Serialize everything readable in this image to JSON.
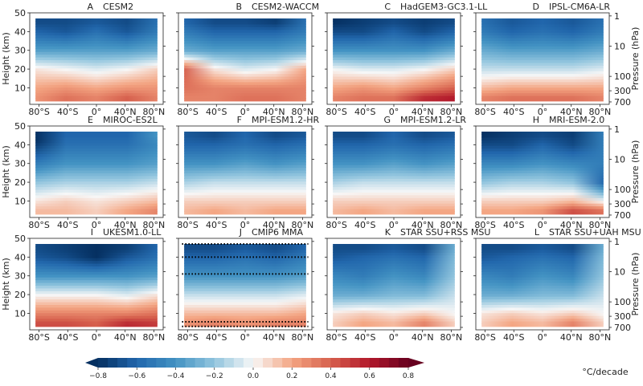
{
  "chart_data": {
    "type": "heatmap",
    "latitudes": [
      -80,
      -40,
      0,
      40,
      80
    ],
    "heights_km": [
      5,
      10,
      20,
      30,
      40,
      45
    ],
    "x_ticks": [
      "80°S",
      "40°S",
      "0°",
      "40°N",
      "80°N"
    ],
    "x_tick_values": [
      -80,
      -40,
      0,
      40,
      80
    ],
    "xlim": [
      -93,
      93
    ],
    "ylabel": "Height (km)",
    "y_ticks": [
      10,
      20,
      30,
      40,
      50
    ],
    "ylim": [
      1.2,
      50
    ],
    "ylabel_right": "Pressure (hPa)",
    "y_right_ticks": [
      1,
      10,
      100,
      300,
      700
    ],
    "colorbar": {
      "ticks": [
        "−0.8",
        "−0.6",
        "−0.4",
        "−0.2",
        "0.0",
        "0.2",
        "0.4",
        "0.6",
        "0.8"
      ],
      "tick_values": [
        -0.8,
        -0.6,
        -0.4,
        -0.2,
        0.0,
        0.2,
        0.4,
        0.6,
        0.8
      ],
      "range": [
        -0.8,
        0.8
      ],
      "label": "°C/decade",
      "colormap": [
        "#053061",
        "#2166ac",
        "#4393c3",
        "#92c5de",
        "#f7f7f7",
        "#f4a582",
        "#d6604d",
        "#b2182b",
        "#67001f"
      ]
    },
    "panels": [
      {
        "letter": "A",
        "name": "CESM2",
        "values": [
          [
            0.25,
            0.35,
            0.3,
            0.4,
            0.3
          ],
          [
            0.2,
            0.25,
            0.2,
            0.25,
            0.25
          ],
          [
            0.05,
            0,
            -0.05,
            0,
            0.1
          ],
          [
            -0.35,
            -0.35,
            -0.35,
            -0.35,
            -0.3
          ],
          [
            -0.6,
            -0.65,
            -0.55,
            -0.65,
            -0.5
          ],
          [
            -0.7,
            -0.7,
            -0.65,
            -0.7,
            -0.55
          ]
        ]
      },
      {
        "letter": "B",
        "name": "CESM2-WACCM",
        "values": [
          [
            0.3,
            0.3,
            0.35,
            0.35,
            0.3
          ],
          [
            0.35,
            0.3,
            0.3,
            0.3,
            0.3
          ],
          [
            0.4,
            0.05,
            -0.05,
            0,
            0.2
          ],
          [
            -0.3,
            -0.35,
            -0.35,
            -0.35,
            -0.3
          ],
          [
            -0.5,
            -0.6,
            -0.6,
            -0.6,
            -0.5
          ],
          [
            -0.6,
            -0.7,
            -0.7,
            -0.75,
            -0.55
          ]
        ]
      },
      {
        "letter": "C",
        "name": "HadGEM3-GC3.1-LL",
        "values": [
          [
            0.3,
            0.35,
            0.35,
            0.55,
            0.6
          ],
          [
            0.2,
            0.25,
            0.2,
            0.3,
            0.4
          ],
          [
            0,
            -0.05,
            -0.05,
            0,
            0.1
          ],
          [
            -0.4,
            -0.4,
            -0.4,
            -0.4,
            -0.3
          ],
          [
            -0.7,
            -0.7,
            -0.6,
            -0.7,
            -0.6
          ],
          [
            -0.8,
            -0.75,
            -0.7,
            -0.75,
            -0.7
          ]
        ]
      },
      {
        "letter": "D",
        "name": "IPSL-CM6A-LR",
        "values": [
          [
            0.3,
            0.35,
            0.35,
            0.35,
            0.3
          ],
          [
            0.15,
            0.2,
            0.2,
            0.2,
            0.2
          ],
          [
            -0.1,
            -0.1,
            -0.1,
            -0.1,
            -0.05
          ],
          [
            -0.3,
            -0.35,
            -0.35,
            -0.35,
            -0.3
          ],
          [
            -0.5,
            -0.6,
            -0.55,
            -0.6,
            -0.5
          ],
          [
            -0.55,
            -0.65,
            -0.6,
            -0.65,
            -0.55
          ]
        ]
      },
      {
        "letter": "E",
        "name": "MIROC-ES2L",
        "values": [
          [
            0.15,
            0.15,
            0.1,
            0.2,
            0.3
          ],
          [
            0.05,
            0.1,
            0.05,
            0.1,
            0.15
          ],
          [
            -0.2,
            -0.15,
            -0.15,
            -0.15,
            -0.1
          ],
          [
            -0.5,
            -0.4,
            -0.4,
            -0.4,
            -0.35
          ],
          [
            -0.75,
            -0.55,
            -0.55,
            -0.55,
            -0.45
          ],
          [
            -0.85,
            -0.6,
            -0.6,
            -0.6,
            -0.4
          ]
        ]
      },
      {
        "letter": "F",
        "name": "MPI-ESM1.2-HR",
        "values": [
          [
            0.15,
            0.2,
            0.15,
            0.2,
            0.2
          ],
          [
            0.1,
            0.1,
            0.1,
            0.1,
            0.1
          ],
          [
            -0.15,
            -0.1,
            -0.1,
            -0.1,
            -0.1
          ],
          [
            -0.4,
            -0.4,
            -0.35,
            -0.4,
            -0.35
          ],
          [
            -0.6,
            -0.6,
            -0.55,
            -0.6,
            -0.55
          ],
          [
            -0.65,
            -0.7,
            -0.6,
            -0.7,
            -0.65
          ]
        ]
      },
      {
        "letter": "G",
        "name": "MPI-ESM1.2-LR",
        "values": [
          [
            0.15,
            0.2,
            0.15,
            0.2,
            0.2
          ],
          [
            0.1,
            0.1,
            0.1,
            0.1,
            0.1
          ],
          [
            -0.15,
            -0.1,
            -0.1,
            -0.1,
            -0.1
          ],
          [
            -0.4,
            -0.4,
            -0.35,
            -0.4,
            -0.35
          ],
          [
            -0.6,
            -0.6,
            -0.55,
            -0.6,
            -0.55
          ],
          [
            -0.7,
            -0.7,
            -0.6,
            -0.7,
            -0.65
          ]
        ]
      },
      {
        "letter": "H",
        "name": "MRI-ESM-2.0",
        "values": [
          [
            0.2,
            0.2,
            0.25,
            0.45,
            0.35
          ],
          [
            0.1,
            0.1,
            0.1,
            0.15,
            0
          ],
          [
            -0.2,
            -0.15,
            -0.15,
            -0.2,
            -0.6
          ],
          [
            -0.45,
            -0.45,
            -0.4,
            -0.45,
            -0.5
          ],
          [
            -0.7,
            -0.7,
            -0.6,
            -0.7,
            -0.5
          ],
          [
            -0.8,
            -0.75,
            -0.7,
            -0.75,
            -0.5
          ]
        ]
      },
      {
        "letter": "I",
        "name": "UKESM1.0-LL",
        "values": [
          [
            0.45,
            0.45,
            0.4,
            0.55,
            0.5
          ],
          [
            0.3,
            0.3,
            0.3,
            0.3,
            0.35
          ],
          [
            0,
            0,
            0,
            -0.05,
            0.05
          ],
          [
            -0.4,
            -0.4,
            -0.4,
            -0.4,
            -0.35
          ],
          [
            -0.65,
            -0.7,
            -0.8,
            -0.65,
            -0.55
          ],
          [
            -0.7,
            -0.75,
            -0.85,
            -0.75,
            -0.6
          ]
        ]
      },
      {
        "letter": "J",
        "name": "CMIP6 MMA",
        "stippled_heights_km": [
          47,
          40,
          31,
          5.5,
          3
        ],
        "values": [
          [
            0.25,
            0.3,
            0.25,
            0.3,
            0.3
          ],
          [
            0.15,
            0.15,
            0.15,
            0.15,
            0.2
          ],
          [
            -0.1,
            -0.1,
            -0.1,
            -0.1,
            -0.05
          ],
          [
            -0.4,
            -0.4,
            -0.4,
            -0.4,
            -0.35
          ],
          [
            -0.6,
            -0.6,
            -0.55,
            -0.6,
            -0.5
          ],
          [
            -0.7,
            -0.7,
            -0.65,
            -0.7,
            -0.6
          ]
        ]
      },
      {
        "letter": "K",
        "name": "STAR SSU+RSS MSU",
        "values": [
          [
            0.1,
            0.2,
            0.15,
            0.3,
            0.1
          ],
          [
            0.05,
            0.1,
            0.05,
            0.1,
            0
          ],
          [
            -0.3,
            -0.3,
            -0.25,
            -0.25,
            -0.1
          ],
          [
            -0.45,
            -0.5,
            -0.4,
            -0.45,
            -0.2
          ],
          [
            -0.65,
            -0.6,
            -0.55,
            -0.6,
            -0.25
          ],
          [
            -0.7,
            -0.7,
            -0.65,
            -0.7,
            -0.3
          ]
        ]
      },
      {
        "letter": "L",
        "name": "STAR SSU+UAH MSU",
        "values": [
          [
            0.1,
            0.2,
            0.15,
            0.3,
            0.1
          ],
          [
            0.05,
            0.1,
            0.05,
            0.1,
            0
          ],
          [
            -0.3,
            -0.3,
            -0.25,
            -0.25,
            -0.1
          ],
          [
            -0.45,
            -0.5,
            -0.4,
            -0.45,
            -0.2
          ],
          [
            -0.65,
            -0.6,
            -0.55,
            -0.6,
            -0.25
          ],
          [
            -0.7,
            -0.7,
            -0.65,
            -0.7,
            -0.3
          ]
        ]
      }
    ]
  }
}
